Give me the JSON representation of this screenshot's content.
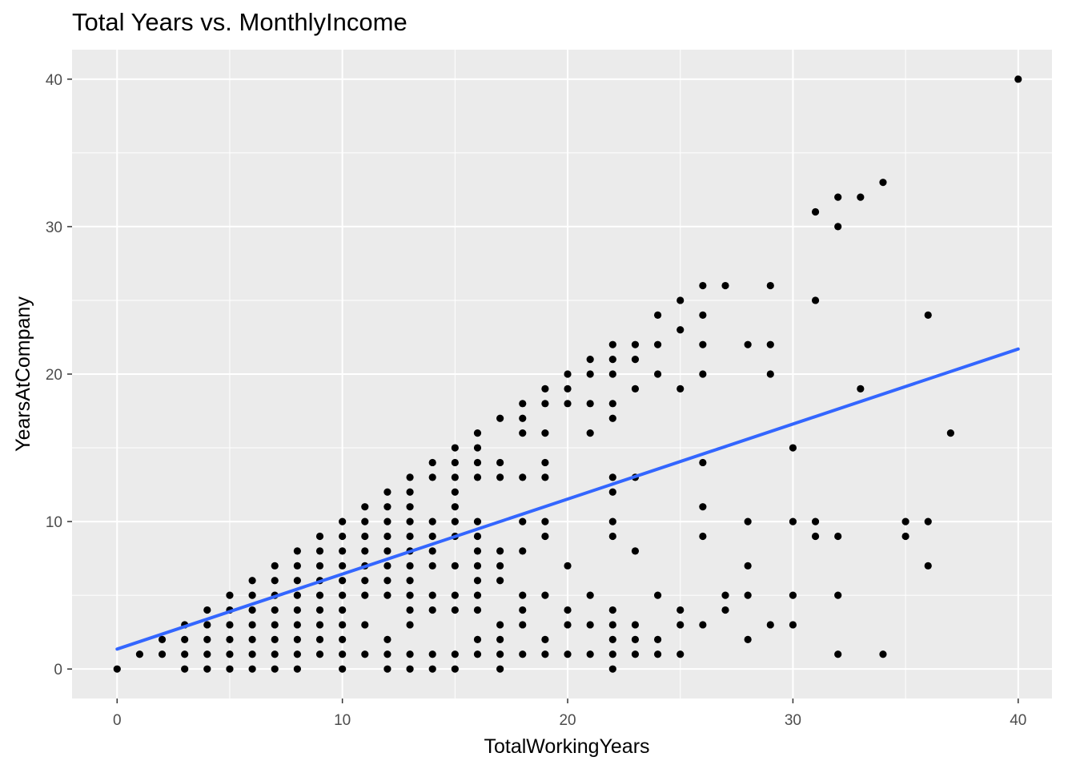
{
  "chart_data": {
    "type": "scatter",
    "title": "Total Years vs. MonthlyIncome",
    "xlabel": "TotalWorkingYears",
    "ylabel": "YearsAtCompany",
    "xlim": [
      -2,
      41.5
    ],
    "ylim": [
      -2,
      42
    ],
    "x_ticks": [
      0,
      10,
      20,
      30,
      40
    ],
    "y_ticks": [
      0,
      10,
      20,
      30,
      40
    ],
    "x_tick_labels": [
      "0",
      "10",
      "20",
      "30",
      "40"
    ],
    "y_tick_labels": [
      "0",
      "10",
      "20",
      "30",
      "40"
    ],
    "grid": true,
    "legend": "none",
    "colors": {
      "panel": "#ebebeb",
      "grid": "#ffffff",
      "points": "#000000",
      "trend": "#3366ff"
    },
    "trend_line": {
      "method": "lm",
      "x": [
        0,
        40
      ],
      "y": [
        1.35,
        21.7
      ]
    },
    "points": [
      [
        0,
        0
      ],
      [
        1,
        1
      ],
      [
        2,
        1
      ],
      [
        2,
        2
      ],
      [
        3,
        0
      ],
      [
        3,
        1
      ],
      [
        3,
        2
      ],
      [
        3,
        3
      ],
      [
        4,
        0
      ],
      [
        4,
        1
      ],
      [
        4,
        2
      ],
      [
        4,
        3
      ],
      [
        4,
        4
      ],
      [
        5,
        0
      ],
      [
        5,
        1
      ],
      [
        5,
        2
      ],
      [
        5,
        3
      ],
      [
        5,
        4
      ],
      [
        5,
        5
      ],
      [
        6,
        0
      ],
      [
        6,
        1
      ],
      [
        6,
        2
      ],
      [
        6,
        3
      ],
      [
        6,
        4
      ],
      [
        6,
        5
      ],
      [
        6,
        6
      ],
      [
        7,
        0
      ],
      [
        7,
        1
      ],
      [
        7,
        2
      ],
      [
        7,
        3
      ],
      [
        7,
        4
      ],
      [
        7,
        5
      ],
      [
        7,
        6
      ],
      [
        7,
        7
      ],
      [
        8,
        0
      ],
      [
        8,
        1
      ],
      [
        8,
        2
      ],
      [
        8,
        3
      ],
      [
        8,
        4
      ],
      [
        8,
        5
      ],
      [
        8,
        6
      ],
      [
        8,
        7
      ],
      [
        8,
        8
      ],
      [
        9,
        1
      ],
      [
        9,
        2
      ],
      [
        9,
        3
      ],
      [
        9,
        4
      ],
      [
        9,
        5
      ],
      [
        9,
        6
      ],
      [
        9,
        7
      ],
      [
        9,
        8
      ],
      [
        9,
        9
      ],
      [
        10,
        0
      ],
      [
        10,
        1
      ],
      [
        10,
        2
      ],
      [
        10,
        3
      ],
      [
        10,
        4
      ],
      [
        10,
        5
      ],
      [
        10,
        6
      ],
      [
        10,
        7
      ],
      [
        10,
        8
      ],
      [
        10,
        9
      ],
      [
        10,
        10
      ],
      [
        11,
        1
      ],
      [
        11,
        3
      ],
      [
        11,
        5
      ],
      [
        11,
        6
      ],
      [
        11,
        7
      ],
      [
        11,
        8
      ],
      [
        11,
        9
      ],
      [
        11,
        10
      ],
      [
        11,
        11
      ],
      [
        12,
        0
      ],
      [
        12,
        1
      ],
      [
        12,
        2
      ],
      [
        12,
        5
      ],
      [
        12,
        6
      ],
      [
        12,
        7
      ],
      [
        12,
        8
      ],
      [
        12,
        9
      ],
      [
        12,
        10
      ],
      [
        12,
        11
      ],
      [
        12,
        12
      ],
      [
        13,
        0
      ],
      [
        13,
        1
      ],
      [
        13,
        3
      ],
      [
        13,
        4
      ],
      [
        13,
        5
      ],
      [
        13,
        6
      ],
      [
        13,
        7
      ],
      [
        13,
        8
      ],
      [
        13,
        9
      ],
      [
        13,
        10
      ],
      [
        13,
        11
      ],
      [
        13,
        12
      ],
      [
        13,
        13
      ],
      [
        14,
        0
      ],
      [
        14,
        1
      ],
      [
        14,
        4
      ],
      [
        14,
        5
      ],
      [
        14,
        7
      ],
      [
        14,
        8
      ],
      [
        14,
        9
      ],
      [
        14,
        10
      ],
      [
        14,
        13
      ],
      [
        14,
        14
      ],
      [
        15,
        0
      ],
      [
        15,
        1
      ],
      [
        15,
        4
      ],
      [
        15,
        5
      ],
      [
        15,
        7
      ],
      [
        15,
        9
      ],
      [
        15,
        10
      ],
      [
        15,
        11
      ],
      [
        15,
        12
      ],
      [
        15,
        13
      ],
      [
        15,
        14
      ],
      [
        15,
        15
      ],
      [
        16,
        1
      ],
      [
        16,
        2
      ],
      [
        16,
        4
      ],
      [
        16,
        5
      ],
      [
        16,
        6
      ],
      [
        16,
        7
      ],
      [
        16,
        8
      ],
      [
        16,
        9
      ],
      [
        16,
        10
      ],
      [
        16,
        13
      ],
      [
        16,
        14
      ],
      [
        16,
        15
      ],
      [
        16,
        16
      ],
      [
        17,
        0
      ],
      [
        17,
        1
      ],
      [
        17,
        2
      ],
      [
        17,
        3
      ],
      [
        17,
        6
      ],
      [
        17,
        7
      ],
      [
        17,
        8
      ],
      [
        17,
        13
      ],
      [
        17,
        14
      ],
      [
        17,
        17
      ],
      [
        18,
        1
      ],
      [
        18,
        3
      ],
      [
        18,
        4
      ],
      [
        18,
        5
      ],
      [
        18,
        8
      ],
      [
        18,
        10
      ],
      [
        18,
        13
      ],
      [
        18,
        16
      ],
      [
        18,
        17
      ],
      [
        18,
        18
      ],
      [
        19,
        1
      ],
      [
        19,
        2
      ],
      [
        19,
        5
      ],
      [
        19,
        9
      ],
      [
        19,
        10
      ],
      [
        19,
        13
      ],
      [
        19,
        14
      ],
      [
        19,
        16
      ],
      [
        19,
        18
      ],
      [
        19,
        19
      ],
      [
        20,
        1
      ],
      [
        20,
        3
      ],
      [
        20,
        4
      ],
      [
        20,
        7
      ],
      [
        20,
        18
      ],
      [
        20,
        19
      ],
      [
        20,
        20
      ],
      [
        21,
        1
      ],
      [
        21,
        3
      ],
      [
        21,
        5
      ],
      [
        21,
        16
      ],
      [
        21,
        18
      ],
      [
        21,
        20
      ],
      [
        21,
        21
      ],
      [
        22,
        0
      ],
      [
        22,
        1
      ],
      [
        22,
        2
      ],
      [
        22,
        3
      ],
      [
        22,
        4
      ],
      [
        22,
        9
      ],
      [
        22,
        10
      ],
      [
        22,
        12
      ],
      [
        22,
        13
      ],
      [
        22,
        17
      ],
      [
        22,
        18
      ],
      [
        22,
        20
      ],
      [
        22,
        21
      ],
      [
        22,
        22
      ],
      [
        23,
        1
      ],
      [
        23,
        2
      ],
      [
        23,
        3
      ],
      [
        23,
        8
      ],
      [
        23,
        13
      ],
      [
        23,
        19
      ],
      [
        23,
        21
      ],
      [
        23,
        22
      ],
      [
        24,
        1
      ],
      [
        24,
        2
      ],
      [
        24,
        5
      ],
      [
        24,
        20
      ],
      [
        24,
        22
      ],
      [
        24,
        24
      ],
      [
        25,
        1
      ],
      [
        25,
        3
      ],
      [
        25,
        4
      ],
      [
        25,
        19
      ],
      [
        25,
        23
      ],
      [
        25,
        25
      ],
      [
        26,
        3
      ],
      [
        26,
        9
      ],
      [
        26,
        11
      ],
      [
        26,
        14
      ],
      [
        26,
        20
      ],
      [
        26,
        22
      ],
      [
        26,
        24
      ],
      [
        26,
        26
      ],
      [
        27,
        4
      ],
      [
        27,
        5
      ],
      [
        27,
        26
      ],
      [
        28,
        2
      ],
      [
        28,
        5
      ],
      [
        28,
        7
      ],
      [
        28,
        10
      ],
      [
        28,
        22
      ],
      [
        29,
        3
      ],
      [
        29,
        20
      ],
      [
        29,
        22
      ],
      [
        29,
        26
      ],
      [
        30,
        3
      ],
      [
        30,
        5
      ],
      [
        30,
        10
      ],
      [
        30,
        15
      ],
      [
        31,
        9
      ],
      [
        31,
        10
      ],
      [
        31,
        25
      ],
      [
        31,
        31
      ],
      [
        32,
        1
      ],
      [
        32,
        5
      ],
      [
        32,
        9
      ],
      [
        32,
        30
      ],
      [
        32,
        32
      ],
      [
        33,
        19
      ],
      [
        33,
        32
      ],
      [
        34,
        1
      ],
      [
        34,
        33
      ],
      [
        35,
        9
      ],
      [
        35,
        10
      ],
      [
        36,
        7
      ],
      [
        36,
        10
      ],
      [
        36,
        24
      ],
      [
        37,
        16
      ],
      [
        40,
        40
      ]
    ]
  }
}
